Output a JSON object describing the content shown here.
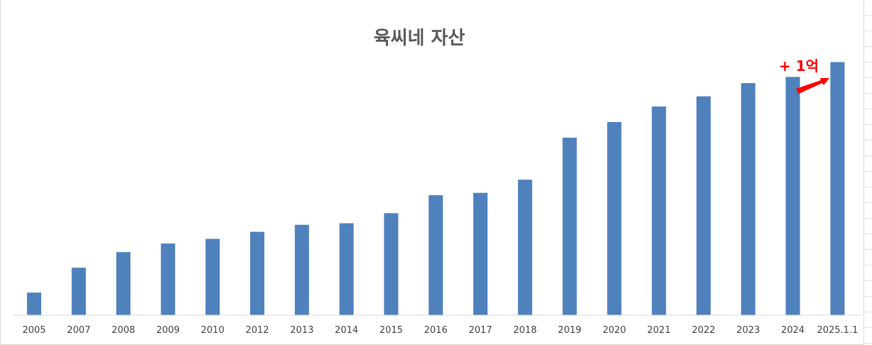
{
  "chart_data": {
    "type": "bar",
    "title": "육씨네 자산",
    "xlabel": "",
    "ylabel": "",
    "categories": [
      "2005",
      "2007",
      "2008",
      "2009",
      "2010",
      "2012",
      "2013",
      "2014",
      "2015",
      "2016",
      "2017",
      "2018",
      "2019",
      "2020",
      "2021",
      "2022",
      "2023",
      "2024",
      "2025.1.1"
    ],
    "series": [
      {
        "values": [
          29,
          61,
          81,
          92,
          98,
          107,
          116,
          118,
          131,
          154,
          157,
          174,
          228,
          248,
          268,
          281,
          298,
          306,
          325
        ]
      }
    ],
    "ylim": [
      0,
      350
    ],
    "y_axis_visible": false,
    "grid": false,
    "legend": "none",
    "bar_color": "#4f81bd",
    "annotation": {
      "text": "+ 1억",
      "color": "#ff0000",
      "points_to": "2025.1.1"
    }
  }
}
